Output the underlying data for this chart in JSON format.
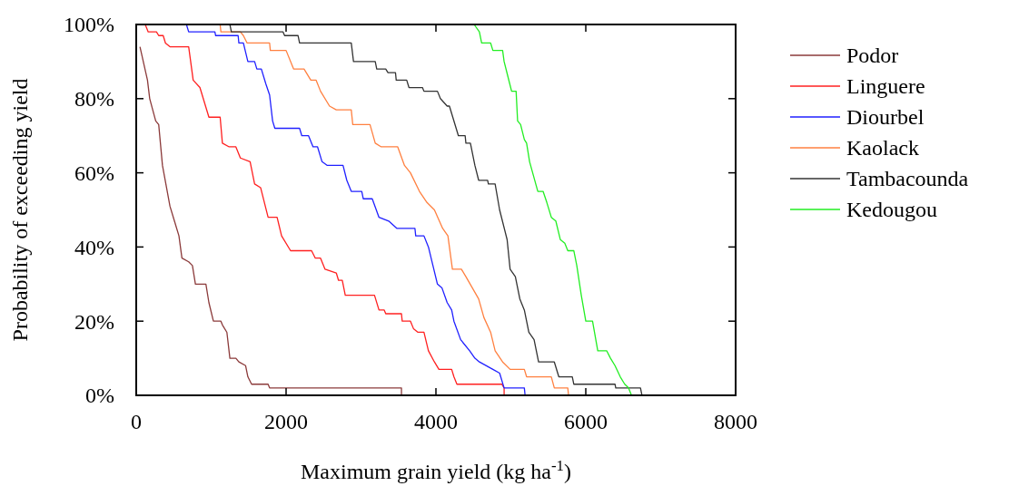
{
  "chart_data": {
    "type": "line",
    "xlabel": "Maximum grain yield (kg ha$^{-1}$)",
    "ylabel": "Probability of exceeding yield",
    "xlim": [
      0,
      8000
    ],
    "xticks": [
      0,
      2000,
      4000,
      6000,
      8000
    ],
    "ylim": [
      0,
      100
    ],
    "yticks": [
      {
        "value": 0,
        "label": "0%"
      },
      {
        "value": 20,
        "label": "20%"
      },
      {
        "value": 40,
        "label": "40%"
      },
      {
        "value": 60,
        "label": "60%"
      },
      {
        "value": 80,
        "label": "80%"
      },
      {
        "value": 100,
        "label": "100%"
      }
    ],
    "grid": false,
    "legend": "right",
    "marker": "none",
    "line_style": "solid",
    "series": [
      {
        "name": "Podor",
        "color": "#8b3a3a",
        "x": [
          50,
          150,
          180,
          260,
          300,
          350,
          450,
          510,
          570,
          610,
          700,
          750,
          790,
          930,
          970,
          1030,
          1130,
          1150,
          1210,
          1250,
          1330,
          1370,
          1460,
          1490,
          1540,
          1760,
          1780,
          3540,
          3540
        ],
        "values": [
          94,
          85,
          80,
          74,
          73,
          62,
          51,
          47,
          43,
          37,
          36,
          35,
          30,
          30,
          25,
          20,
          20,
          19,
          17,
          10,
          10,
          9,
          8,
          5,
          3,
          3,
          2,
          2,
          0
        ]
      },
      {
        "name": "Linguere",
        "color": "#ff2020",
        "x": [
          120,
          160,
          270,
          300,
          360,
          390,
          450,
          700,
          760,
          850,
          970,
          1120,
          1150,
          1240,
          1330,
          1390,
          1520,
          1580,
          1660,
          1760,
          1880,
          1940,
          2060,
          2340,
          2390,
          2460,
          2520,
          2670,
          2700,
          2750,
          2790,
          3180,
          3240,
          3310,
          3330,
          3540,
          3550,
          3660,
          3700,
          3760,
          3840,
          3900,
          3980,
          4040,
          4210,
          4240,
          4280,
          4880,
          4910,
          4910
        ],
        "values": [
          100,
          98,
          98,
          97,
          97,
          95,
          94,
          94,
          85,
          83,
          75,
          75,
          68,
          67,
          67,
          64,
          63,
          57,
          56,
          48,
          48,
          43,
          39,
          39,
          37,
          37,
          34,
          33,
          31,
          31,
          27,
          27,
          23,
          23,
          22,
          22,
          20,
          20,
          18,
          17,
          17,
          12,
          9,
          7,
          7,
          5,
          3,
          3,
          2,
          0
        ]
      },
      {
        "name": "Diourbel",
        "color": "#2020ff",
        "x": [
          670,
          700,
          1050,
          1060,
          1360,
          1370,
          1430,
          1490,
          1580,
          1610,
          1670,
          1730,
          1780,
          1820,
          1850,
          2180,
          2210,
          2300,
          2360,
          2420,
          2480,
          2550,
          2760,
          2810,
          2870,
          3010,
          3030,
          3150,
          3240,
          3370,
          3480,
          3720,
          3730,
          3840,
          3900,
          3960,
          4020,
          4080,
          4150,
          4210,
          4240,
          4330,
          4450,
          4520,
          4580,
          4760,
          4850,
          4910,
          5180,
          5190
        ],
        "values": [
          100,
          98,
          98,
          97,
          97,
          95,
          95,
          90,
          90,
          88,
          88,
          84,
          81,
          74,
          72,
          72,
          70,
          70,
          67,
          67,
          63,
          62,
          62,
          58,
          55,
          55,
          53,
          53,
          48,
          47,
          45,
          45,
          43,
          43,
          40,
          35,
          30,
          29,
          25,
          23,
          20,
          15,
          12,
          10,
          9,
          7,
          6,
          2,
          2,
          0
        ]
      },
      {
        "name": "Kaolack",
        "color": "#ff8040",
        "x": [
          1120,
          1130,
          1390,
          1430,
          1480,
          1780,
          1790,
          2000,
          2100,
          2240,
          2330,
          2400,
          2460,
          2580,
          2670,
          2870,
          2890,
          3120,
          3190,
          3270,
          3490,
          3580,
          3660,
          3780,
          3880,
          3980,
          4090,
          4160,
          4220,
          4340,
          4400,
          4570,
          4640,
          4730,
          4790,
          4890,
          4990,
          5180,
          5210,
          5540,
          5580,
          5760,
          5770
        ],
        "values": [
          100,
          98,
          98,
          97,
          95,
          95,
          93,
          93,
          88,
          88,
          85,
          85,
          82,
          78,
          77,
          77,
          73,
          73,
          68,
          67,
          67,
          62,
          60,
          55,
          52,
          50,
          45,
          43,
          34,
          34,
          32,
          26,
          21,
          17,
          12,
          9,
          7,
          7,
          5,
          5,
          2,
          2,
          0
        ]
      },
      {
        "name": "Tambacounda",
        "color": "#333333",
        "x": [
          1250,
          1270,
          1960,
          1980,
          2160,
          2180,
          2870,
          2900,
          3190,
          3210,
          3330,
          3360,
          3460,
          3470,
          3610,
          3640,
          3820,
          3840,
          4020,
          4060,
          4150,
          4180,
          4300,
          4390,
          4400,
          4460,
          4520,
          4570,
          4690,
          4700,
          4790,
          4850,
          4950,
          4990,
          5060,
          5120,
          5180,
          5240,
          5310,
          5370,
          5580,
          5640,
          5820,
          5840,
          6390,
          6400,
          6730,
          6750
        ],
        "values": [
          100,
          98,
          98,
          97,
          97,
          95,
          95,
          90,
          90,
          88,
          88,
          87,
          87,
          85,
          85,
          83,
          83,
          82,
          82,
          80,
          78,
          78,
          70,
          70,
          68,
          68,
          62,
          58,
          58,
          57,
          57,
          50,
          42,
          34,
          32,
          26,
          23,
          17,
          15,
          9,
          9,
          5,
          5,
          3,
          3,
          2,
          2,
          0
        ]
      },
      {
        "name": "Kedougou",
        "color": "#22ee22",
        "x": [
          4510,
          4580,
          4610,
          4730,
          4760,
          4890,
          4910,
          4960,
          5010,
          5070,
          5090,
          5130,
          5180,
          5210,
          5250,
          5360,
          5430,
          5480,
          5540,
          5600,
          5660,
          5720,
          5760,
          5840,
          5880,
          5940,
          6000,
          6090,
          6160,
          6280,
          6330,
          6390,
          6460,
          6520,
          6570,
          6610
        ],
        "values": [
          100,
          98,
          95,
          95,
          93,
          93,
          90,
          86,
          82,
          82,
          74,
          73,
          69,
          68,
          63,
          55,
          55,
          52,
          48,
          47,
          42,
          41,
          39,
          39,
          35,
          27,
          20,
          20,
          12,
          12,
          10,
          8,
          5,
          3,
          2,
          0
        ]
      }
    ]
  }
}
